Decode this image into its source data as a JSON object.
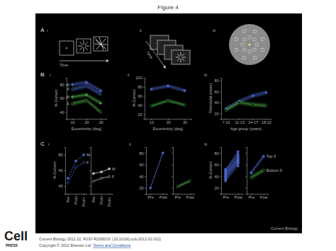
{
  "figure_title": "Figure 4",
  "panel_letters": [
    "A",
    "B",
    "C"
  ],
  "diagrams": [
    {
      "label": "i",
      "caption": "Time"
    },
    {
      "label": "ii",
      "caption": "Time"
    },
    {
      "label": "iii"
    }
  ],
  "journal_mark": "Current Biology",
  "logo": "Cell",
  "logo_sub": "PRESS",
  "footer": {
    "citation": "Current Biology 2012 22, R197-R206DOI: (10.1016/j.cub.2012.02.012)",
    "copyright": "Copyright © 2012 Elsevier Ltd",
    "link": "Terms and Conditions"
  },
  "chart_data": [
    {
      "type": "line",
      "panel_label": "i",
      "x": [
        10,
        20,
        30
      ],
      "xlim": [
        6,
        34
      ],
      "xticks": [
        10,
        20,
        30
      ],
      "ylim": [
        30,
        90
      ],
      "yticks": [
        40,
        60,
        80
      ],
      "x_label": "Eccentricity (deg)",
      "y_label": "% Correct",
      "legend": "left",
      "series": [
        {
          "name": "M",
          "color": "#4a63c9",
          "line_style": "dashed",
          "marker": "circle",
          "values": [
            80,
            83,
            71
          ],
          "error": [
            3,
            3,
            3
          ]
        },
        {
          "name": "F",
          "color": "#4a63c9",
          "line_style": "dashed",
          "marker": "circle-open",
          "values": [
            73,
            78,
            66
          ],
          "error": [
            3,
            3,
            3
          ]
        },
        {
          "name": "M",
          "color": "#3f9a3a",
          "line_style": "solid",
          "marker": "circle",
          "values": [
            62,
            65,
            53
          ],
          "error": [
            3,
            3,
            3
          ]
        },
        {
          "name": "F",
          "color": "#3f9a3a",
          "line_style": "solid",
          "marker": "circle-open",
          "values": [
            52,
            57,
            40
          ],
          "error": [
            3,
            3,
            3
          ]
        }
      ]
    },
    {
      "type": "line",
      "panel_label": "ii",
      "x": [
        10,
        20,
        30
      ],
      "xlim": [
        6,
        34
      ],
      "xticks": [
        10,
        20,
        30
      ],
      "ylim": [
        10,
        100
      ],
      "yticks": [
        20,
        40,
        60,
        80,
        100
      ],
      "x_label": "Eccentricity (deg)",
      "y_label": "% Correct",
      "series": [
        {
          "color": "#4a63c9",
          "line_style": "dashed",
          "marker": "circle",
          "values": [
            75,
            82,
            72
          ],
          "error": [
            4,
            4,
            4
          ]
        },
        {
          "color": "#3f9a3a",
          "line_style": "solid",
          "marker": "circle-open",
          "values": [
            38,
            50,
            40
          ],
          "error": [
            4,
            4,
            4
          ]
        }
      ]
    },
    {
      "type": "line",
      "panel_label": "iii",
      "categories": [
        "7-10",
        "11-13",
        "14-17",
        "18-22"
      ],
      "ylim": [
        10,
        85
      ],
      "yticks": [
        20,
        40,
        60,
        80
      ],
      "x_label": "Age group (years)",
      "y_label": "Threshold (msec)",
      "series": [
        {
          "color": "#4a63c9",
          "line_style": "dashed",
          "marker": "circle",
          "values": [
            28,
            42,
            52,
            58
          ],
          "error": [
            4,
            4,
            4,
            4
          ]
        },
        {
          "color": "#3f9a3a",
          "line_style": "solid",
          "marker": "circle-open",
          "values": [
            26,
            40,
            36,
            34
          ],
          "error": [
            4,
            4,
            4,
            4
          ]
        }
      ]
    },
    {
      "type": "line",
      "panel_label": "i",
      "categories": [
        "Pre",
        "Post",
        "Post+"
      ],
      "ylim": [
        30,
        90
      ],
      "yticks": [
        40,
        60,
        80
      ],
      "y_label": "% Correct",
      "legend": "right",
      "series": [
        {
          "name": "M",
          "color": "#4a63c9",
          "line_style": "dashed",
          "marker": "circle",
          "values": [
            50,
            72,
            80
          ]
        },
        {
          "name": "F",
          "color": "#4a63c9",
          "line_style": "dashed",
          "marker": "circle-open",
          "values": [
            44,
            64,
            70
          ]
        }
      ]
    },
    {
      "type": "line",
      "categories": [
        "Pre",
        "Post",
        "Post+"
      ],
      "ylim": [
        30,
        90
      ],
      "yticks": [
        40,
        60,
        80
      ],
      "tick_labels": "x",
      "legend": "right",
      "series": [
        {
          "name": "M",
          "color": "#bbbbbb",
          "line_style": "solid",
          "marker": "circle",
          "values": [
            56,
            58,
            62
          ]
        },
        {
          "name": "F",
          "color": "#bbbbbb",
          "line_style": "solid",
          "marker": "circle-open",
          "values": [
            46,
            50,
            52
          ]
        }
      ]
    },
    {
      "type": "line",
      "panel_label": "ii",
      "categories": [
        "Pre",
        "Post"
      ],
      "ylim": [
        10,
        90
      ],
      "yticks": [
        20,
        40,
        60,
        80
      ],
      "series": [
        {
          "color": "#4a63c9",
          "line_style": "dashed",
          "marker": "circle",
          "values": [
            20,
            80
          ],
          "error": [
            3,
            3
          ]
        }
      ]
    },
    {
      "type": "line",
      "categories": [
        "Pre",
        "Post"
      ],
      "ylim": [
        10,
        90
      ],
      "yticks": [
        20,
        40,
        60,
        80
      ],
      "tick_labels": "x",
      "series": [
        {
          "color": "#3f9a3a",
          "line_style": "solid",
          "marker": "circle-open",
          "values": [
            22,
            32
          ],
          "error": [
            3,
            3
          ]
        }
      ]
    },
    {
      "type": "line",
      "panel_label": "iii",
      "categories": [
        "Pre",
        "Post"
      ],
      "ylim": [
        10,
        90
      ],
      "yticks": [
        20,
        40,
        60,
        80
      ],
      "y_label": "% Correct",
      "series": [
        {
          "color": "#4a63c9",
          "line_style": "solid",
          "marker": "circle",
          "values": [
            32,
            58
          ]
        },
        {
          "color": "#4a63c9",
          "line_style": "solid",
          "marker": "circle",
          "values": [
            35,
            62
          ]
        },
        {
          "color": "#4a63c9",
          "line_style": "solid",
          "marker": "circle",
          "values": [
            38,
            64
          ]
        },
        {
          "color": "#4a63c9",
          "line_style": "solid",
          "marker": "circle",
          "values": [
            40,
            66
          ]
        },
        {
          "color": "#4a63c9",
          "line_style": "solid",
          "marker": "circle",
          "values": [
            42,
            68
          ]
        },
        {
          "color": "#4a63c9",
          "line_style": "solid",
          "marker": "circle",
          "values": [
            44,
            70
          ]
        },
        {
          "color": "#4a63c9",
          "line_style": "solid",
          "marker": "circle",
          "values": [
            46,
            72
          ]
        },
        {
          "color": "#4a63c9",
          "line_style": "solid",
          "marker": "circle",
          "values": [
            48,
            75
          ]
        },
        {
          "color": "#4a63c9",
          "line_style": "solid",
          "marker": "circle",
          "values": [
            50,
            78
          ]
        },
        {
          "color": "#4a63c9",
          "line_style": "solid",
          "marker": "circle",
          "values": [
            52,
            82
          ]
        }
      ]
    },
    {
      "type": "line",
      "categories": [
        "Pre",
        "Post"
      ],
      "ylim": [
        10,
        90
      ],
      "yticks": [
        20,
        40,
        60,
        80
      ],
      "tick_labels": "x",
      "legend": "right",
      "series": [
        {
          "name": "Top 5",
          "color": "#4a63c9",
          "line_style": "dashed",
          "marker": "circle",
          "values": [
            46,
            74
          ],
          "error": [
            4,
            4
          ]
        },
        {
          "name": "Bottom 5",
          "color": "#3f9a3a",
          "line_style": "solid",
          "marker": "circle-open",
          "values": [
            38,
            50
          ],
          "error": [
            4,
            4
          ]
        }
      ]
    }
  ]
}
